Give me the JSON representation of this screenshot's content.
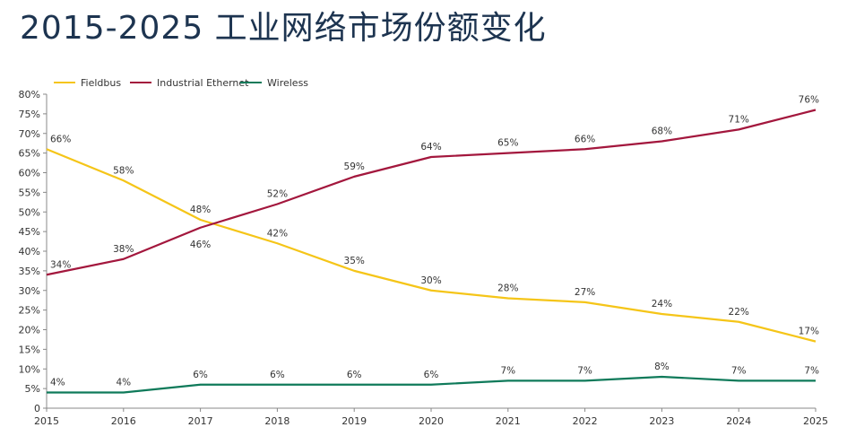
{
  "title": "2015-2025 工业网络市场份额变化",
  "chart_data": {
    "type": "line",
    "title": "2015-2025 工业网络市场份额变化",
    "xlabel": "",
    "ylabel": "",
    "x": [
      "2015",
      "2016",
      "2017",
      "2018",
      "2019",
      "2020",
      "2021",
      "2022",
      "2023",
      "2024",
      "2025"
    ],
    "ylim": [
      0,
      80
    ],
    "yticks": [
      "0",
      "5%",
      "10%",
      "15%",
      "20%",
      "25%",
      "30%",
      "35%",
      "40%",
      "45%",
      "50%",
      "55%",
      "60%",
      "65%",
      "70%",
      "75%",
      "80%"
    ],
    "grid": false,
    "legend": "top-left",
    "series": [
      {
        "name": "Fieldbus",
        "color": "#f5c518",
        "values": [
          66,
          58,
          48,
          42,
          35,
          30,
          28,
          27,
          24,
          22,
          17
        ],
        "labels": [
          "66%",
          "58%",
          "48%",
          "42%",
          "35%",
          "30%",
          "28%",
          "27%",
          "24%",
          "22%",
          "17%"
        ]
      },
      {
        "name": "Industrial Ethernet",
        "color": "#a3173d",
        "values": [
          34,
          38,
          46,
          52,
          59,
          64,
          65,
          66,
          68,
          71,
          76
        ],
        "labels": [
          "34%",
          "38%",
          "46%",
          "52%",
          "59%",
          "64%",
          "65%",
          "66%",
          "68%",
          "71%",
          "76%"
        ]
      },
      {
        "name": "Wireless",
        "color": "#0f7a5a",
        "values": [
          4,
          4,
          6,
          6,
          6,
          6,
          7,
          7,
          8,
          7,
          7
        ],
        "labels": [
          "4%",
          "4%",
          "6%",
          "6%",
          "6%",
          "6%",
          "7%",
          "7%",
          "8%",
          "7%",
          "7%"
        ]
      }
    ]
  }
}
